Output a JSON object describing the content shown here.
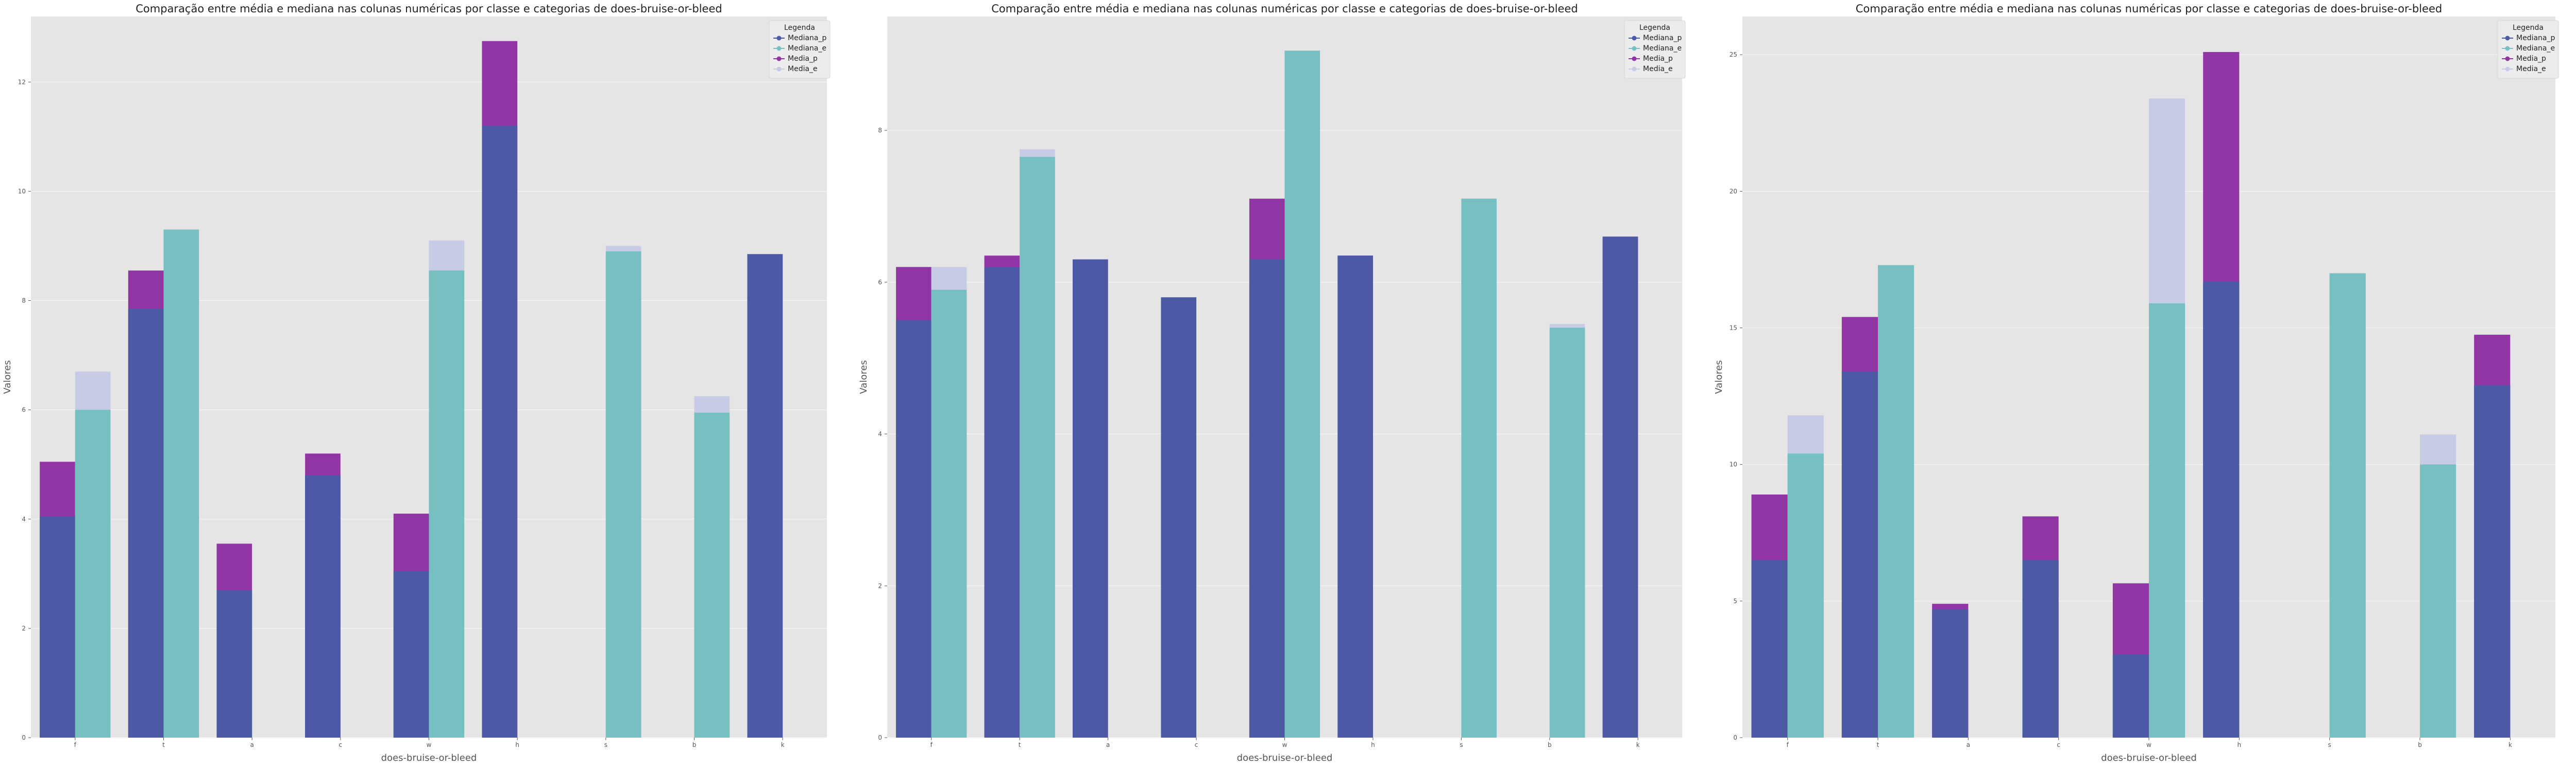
{
  "chart_data": [
    {
      "type": "bar",
      "title": "Comparação entre média e mediana nas colunas numéricas por classe e categorias de does-bruise-or-bleed",
      "xlabel": "does-bruise-or-bleed",
      "ylabel": "Valores",
      "categories": [
        "f",
        "t",
        "a",
        "c",
        "w",
        "h",
        "s",
        "b",
        "k"
      ],
      "ylim": [
        0,
        13.2
      ],
      "yticks": [
        0,
        2,
        4,
        6,
        8,
        10,
        12
      ],
      "legend": {
        "title": "Legenda",
        "position": "top-right"
      },
      "series": [
        {
          "name": "Mediana_p",
          "values": [
            4.05,
            7.85,
            2.7,
            4.8,
            3.05,
            11.2,
            null,
            null,
            8.85
          ]
        },
        {
          "name": "Mediana_e",
          "values": [
            6.0,
            9.3,
            null,
            null,
            8.55,
            null,
            8.9,
            5.95,
            null
          ]
        },
        {
          "name": "Media_p",
          "values": [
            5.05,
            8.55,
            3.55,
            5.2,
            4.1,
            12.75,
            null,
            null,
            8.85
          ]
        },
        {
          "name": "Media_e",
          "values": [
            6.7,
            9.3,
            null,
            null,
            9.1,
            null,
            9.0,
            6.25,
            null
          ]
        }
      ]
    },
    {
      "type": "bar",
      "title": "Comparação entre média e mediana nas colunas numéricas por classe e categorias de does-bruise-or-bleed",
      "xlabel": "does-bruise-or-bleed",
      "ylabel": "Valores",
      "categories": [
        "f",
        "t",
        "a",
        "c",
        "w",
        "h",
        "s",
        "b",
        "k"
      ],
      "ylim": [
        0,
        9.5
      ],
      "yticks": [
        0,
        2,
        4,
        6,
        8
      ],
      "legend": {
        "title": "Legenda",
        "position": "top-right"
      },
      "series": [
        {
          "name": "Mediana_p",
          "values": [
            5.5,
            6.2,
            6.3,
            5.8,
            6.3,
            6.35,
            null,
            null,
            6.6
          ]
        },
        {
          "name": "Mediana_e",
          "values": [
            5.9,
            7.65,
            null,
            null,
            9.05,
            null,
            7.1,
            5.4,
            null
          ]
        },
        {
          "name": "Media_p",
          "values": [
            6.2,
            6.35,
            6.3,
            5.8,
            7.1,
            6.35,
            null,
            null,
            6.6
          ]
        },
        {
          "name": "Media_e",
          "values": [
            6.2,
            7.75,
            null,
            null,
            9.05,
            null,
            7.1,
            5.45,
            null
          ]
        }
      ]
    },
    {
      "type": "bar",
      "title": "Comparação entre média e mediana nas colunas numéricas por classe e categorias de does-bruise-or-bleed",
      "xlabel": "does-bruise-or-bleed",
      "ylabel": "Valores",
      "categories": [
        "f",
        "t",
        "a",
        "c",
        "w",
        "h",
        "s",
        "b",
        "k"
      ],
      "ylim": [
        0,
        26.4
      ],
      "yticks": [
        0,
        5,
        10,
        15,
        20,
        25
      ],
      "legend": {
        "title": "Legenda",
        "position": "top-right"
      },
      "series": [
        {
          "name": "Mediana_p",
          "values": [
            6.5,
            13.4,
            4.7,
            6.5,
            3.05,
            16.7,
            null,
            null,
            12.9
          ]
        },
        {
          "name": "Mediana_e",
          "values": [
            10.4,
            17.3,
            null,
            null,
            15.9,
            null,
            17.0,
            10.0,
            null
          ]
        },
        {
          "name": "Media_p",
          "values": [
            8.9,
            15.4,
            4.9,
            8.1,
            5.65,
            25.1,
            null,
            null,
            14.75
          ]
        },
        {
          "name": "Media_e",
          "values": [
            11.8,
            17.3,
            null,
            null,
            23.4,
            null,
            17.0,
            11.1,
            null
          ]
        }
      ]
    }
  ],
  "colors": {
    "Mediana_p": "#4c5aa6",
    "Mediana_e": "#76c0c1",
    "Media_p": "#9035a3",
    "Media_e": "#c8cbe6",
    "plot_bg": "#e5e5e5",
    "grid": "#f5f5f5"
  }
}
